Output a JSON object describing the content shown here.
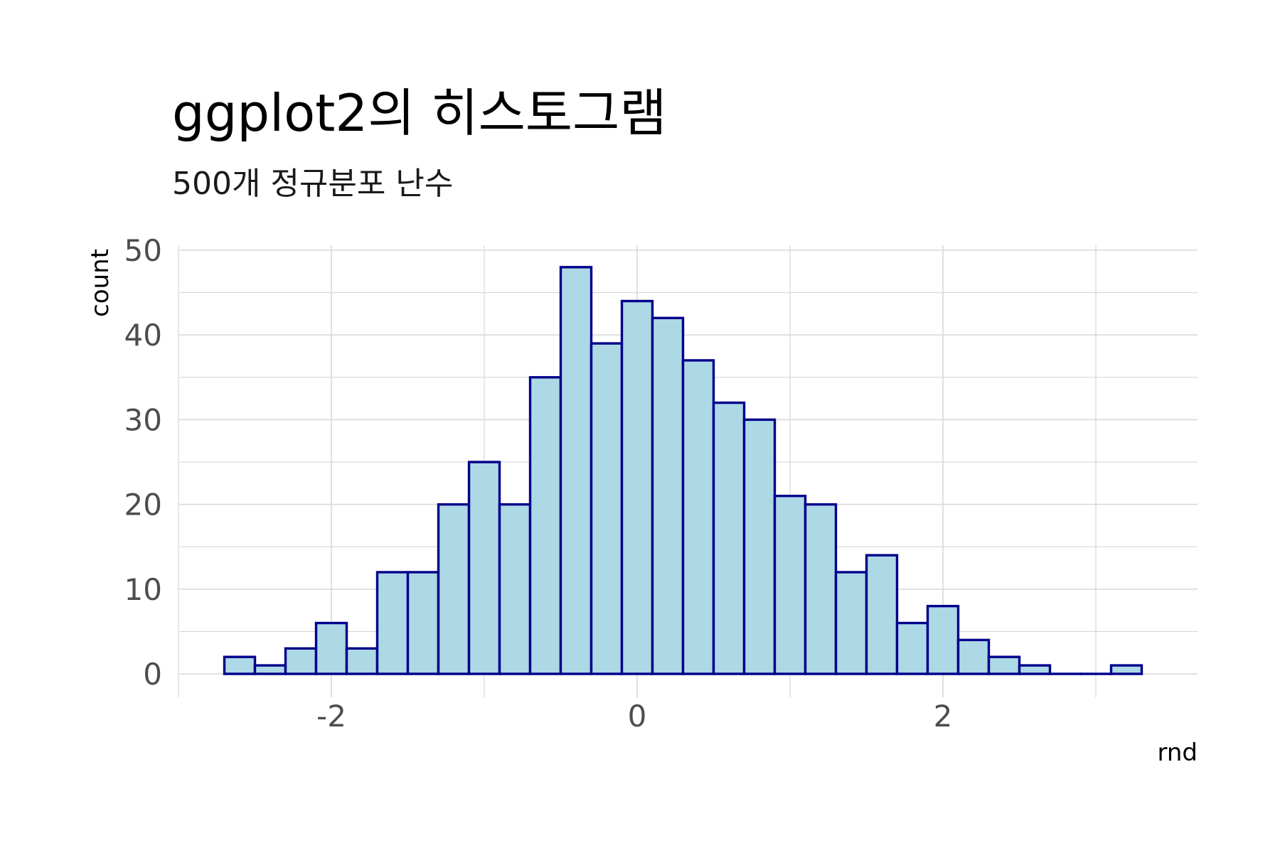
{
  "chart_data": {
    "type": "bar",
    "title": "ggplot2의 히스토그램",
    "subtitle": "500개 정규분포 난수",
    "xlabel": "rnd",
    "ylabel": "count",
    "xlim": [
      -3.0,
      3.6
    ],
    "ylim": [
      0,
      50
    ],
    "x_ticks": [
      -2,
      0,
      2
    ],
    "y_ticks": [
      0,
      10,
      20,
      30,
      40,
      50
    ],
    "grid": true,
    "bin_width": 0.2,
    "bins": [
      {
        "x": -2.6,
        "count": 2
      },
      {
        "x": -2.4,
        "count": 1
      },
      {
        "x": -2.2,
        "count": 3
      },
      {
        "x": -2.0,
        "count": 6
      },
      {
        "x": -1.8,
        "count": 3
      },
      {
        "x": -1.6,
        "count": 12
      },
      {
        "x": -1.4,
        "count": 12
      },
      {
        "x": -1.2,
        "count": 20
      },
      {
        "x": -1.0,
        "count": 25
      },
      {
        "x": -0.8,
        "count": 20
      },
      {
        "x": -0.6,
        "count": 35
      },
      {
        "x": -0.4,
        "count": 48
      },
      {
        "x": -0.2,
        "count": 39
      },
      {
        "x": 0.0,
        "count": 44
      },
      {
        "x": 0.2,
        "count": 42
      },
      {
        "x": 0.4,
        "count": 37
      },
      {
        "x": 0.6,
        "count": 32
      },
      {
        "x": 0.8,
        "count": 30
      },
      {
        "x": 1.0,
        "count": 21
      },
      {
        "x": 1.2,
        "count": 20
      },
      {
        "x": 1.4,
        "count": 12
      },
      {
        "x": 1.6,
        "count": 14
      },
      {
        "x": 1.8,
        "count": 6
      },
      {
        "x": 2.0,
        "count": 8
      },
      {
        "x": 2.2,
        "count": 4
      },
      {
        "x": 2.4,
        "count": 2
      },
      {
        "x": 2.6,
        "count": 1
      },
      {
        "x": 2.8,
        "count": 0
      },
      {
        "x": 3.0,
        "count": 0
      },
      {
        "x": 3.2,
        "count": 1
      }
    ],
    "colors": {
      "fill": "#add8e6",
      "outline": "#00008b",
      "grid": "#d9d9d9",
      "tick_text": "#4d4d4d"
    }
  }
}
